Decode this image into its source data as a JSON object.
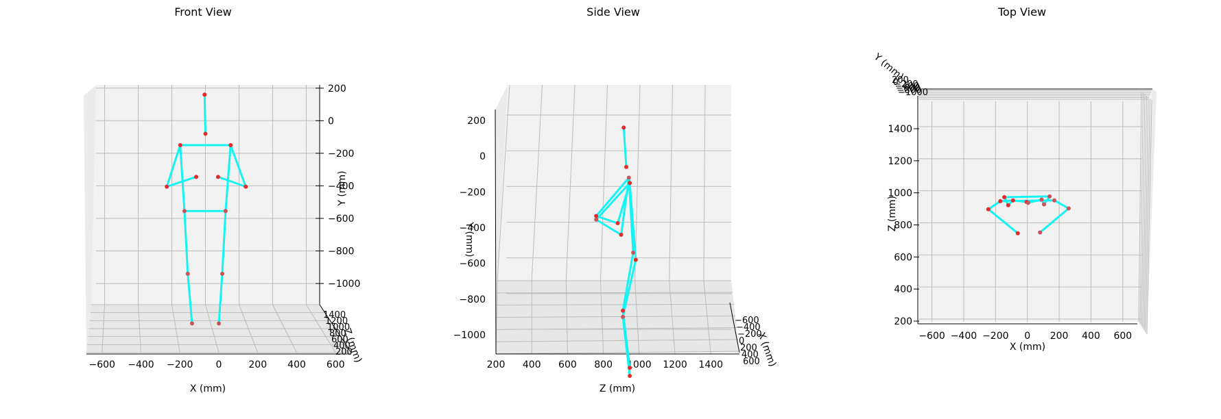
{
  "chart_data": [
    {
      "type": "scatter",
      "title": "Front View",
      "xlabel": "X (mm)",
      "ylabel": "Y (mm)",
      "zlabel": "Z (mm)",
      "xticks": [
        "−600",
        "−400",
        "−200",
        "0",
        "200",
        "400",
        "600"
      ],
      "yticks": [
        "200",
        "0",
        "−200",
        "−400",
        "−600",
        "−800",
        "−1000"
      ],
      "zticks": [
        "1400",
        "1200",
        "1000",
        "800",
        "600",
        "400",
        "200"
      ],
      "xlim": [
        -680,
        680
      ],
      "ylim": [
        -1130,
        220
      ],
      "grid": true,
      "joints": [
        {
          "x": -5,
          "y": 160
        },
        {
          "x": 0,
          "y": -80
        },
        {
          "x": -150,
          "y": -150
        },
        {
          "x": 150,
          "y": -150
        },
        {
          "x": -55,
          "y": -345
        },
        {
          "x": 75,
          "y": -345
        },
        {
          "x": -230,
          "y": -405
        },
        {
          "x": 240,
          "y": -405
        },
        {
          "x": -125,
          "y": -555
        },
        {
          "x": 120,
          "y": -555
        },
        {
          "x": -105,
          "y": -940
        },
        {
          "x": 100,
          "y": -940
        },
        {
          "x": -80,
          "y": -1245
        },
        {
          "x": 80,
          "y": -1245
        }
      ],
      "bones": [
        [
          0,
          1
        ],
        [
          2,
          3
        ],
        [
          2,
          8
        ],
        [
          3,
          9
        ],
        [
          8,
          9
        ],
        [
          2,
          6
        ],
        [
          6,
          4
        ],
        [
          3,
          7
        ],
        [
          7,
          5
        ],
        [
          8,
          10
        ],
        [
          10,
          12
        ],
        [
          9,
          11
        ],
        [
          11,
          13
        ]
      ]
    },
    {
      "type": "scatter",
      "title": "Side View",
      "xlabel": "Z (mm)",
      "ylabel": "Y (mm)",
      "zlabel": "X (mm)",
      "xticks": [
        "200",
        "400",
        "600",
        "800",
        "1000",
        "1200",
        "1400"
      ],
      "yticks": [
        "200",
        "0",
        "−200",
        "−400",
        "−600",
        "−800",
        "−1000"
      ],
      "zticks": [
        "−600",
        "−400",
        "−200",
        "0",
        "200",
        "400",
        "600"
      ],
      "xlim": [
        200,
        1560
      ],
      "ylim": [
        -1110,
        210
      ],
      "grid": true,
      "joints": [
        {
          "z": 935,
          "y": 160
        },
        {
          "z": 950,
          "y": -60
        },
        {
          "z": 965,
          "y": -120
        },
        {
          "z": 970,
          "y": -150
        },
        {
          "z": 775,
          "y": -335
        },
        {
          "z": 775,
          "y": -355
        },
        {
          "z": 900,
          "y": -375
        },
        {
          "z": 920,
          "y": -440
        },
        {
          "z": 990,
          "y": -540
        },
        {
          "z": 1005,
          "y": -580
        },
        {
          "z": 930,
          "y": -865
        },
        {
          "z": 930,
          "y": -900
        },
        {
          "z": 970,
          "y": -1185
        },
        {
          "z": 970,
          "y": -1230
        }
      ],
      "bones": [
        [
          0,
          1
        ],
        [
          2,
          3
        ],
        [
          2,
          4
        ],
        [
          4,
          6
        ],
        [
          6,
          3
        ],
        [
          3,
          5
        ],
        [
          5,
          7
        ],
        [
          7,
          2
        ],
        [
          2,
          8
        ],
        [
          3,
          9
        ],
        [
          8,
          10
        ],
        [
          9,
          11
        ],
        [
          10,
          12
        ],
        [
          11,
          13
        ]
      ]
    },
    {
      "type": "scatter",
      "title": "Top View",
      "xlabel": "X (mm)",
      "ylabel": "Z (mm)",
      "zlabel": "Y (mm)",
      "xticks": [
        "−600",
        "−400",
        "−200",
        "0",
        "200",
        "400",
        "600"
      ],
      "yticks": [
        "1400",
        "1200",
        "1000",
        "800",
        "600",
        "400",
        "200"
      ],
      "zticks": [
        "200",
        "0",
        "−200",
        "−400",
        "−600",
        "−800",
        "−1000"
      ],
      "xlim": [
        -680,
        700
      ],
      "ylim": [
        190,
        1580
      ],
      "grid": true,
      "joints": [
        {
          "x": -145,
          "z": 990
        },
        {
          "x": 140,
          "z": 995
        },
        {
          "x": -170,
          "z": 965
        },
        {
          "x": 170,
          "z": 970
        },
        {
          "x": -120,
          "z": 940
        },
        {
          "x": 105,
          "z": 945
        },
        {
          "x": -245,
          "z": 915
        },
        {
          "x": 260,
          "z": 920
        },
        {
          "x": -60,
          "z": 765
        },
        {
          "x": 80,
          "z": 770
        },
        {
          "x": -90,
          "z": 970
        },
        {
          "x": 90,
          "z": 975
        },
        {
          "x": -5,
          "z": 960
        },
        {
          "x": 5,
          "z": 955
        }
      ],
      "bones": [
        [
          0,
          1
        ],
        [
          2,
          3
        ],
        [
          2,
          6
        ],
        [
          6,
          8
        ],
        [
          3,
          7
        ],
        [
          7,
          9
        ],
        [
          0,
          4
        ],
        [
          4,
          10
        ],
        [
          1,
          5
        ],
        [
          5,
          11
        ],
        [
          10,
          12
        ],
        [
          11,
          13
        ],
        [
          2,
          10
        ]
      ]
    }
  ],
  "colors": {
    "bone": "#16f3f3",
    "joint": "#e32b2b",
    "joint_alt": "#c8545a",
    "pane": "#f2f2f2",
    "grid": "#bcbcbc"
  }
}
